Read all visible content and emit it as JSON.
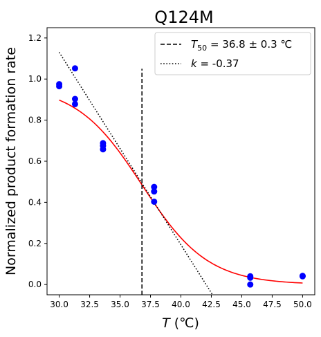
{
  "chart_data": {
    "type": "scatter",
    "title": "Q124M",
    "xlabel_var": "T",
    "xlabel_unit": " (℃)",
    "ylabel": "Normalized product formation rate",
    "xlim": [
      29.0,
      51.0
    ],
    "ylim": [
      -0.05,
      1.25
    ],
    "xticks": [
      30.0,
      32.5,
      35.0,
      37.5,
      40.0,
      42.5,
      45.0,
      47.5,
      50.0
    ],
    "xtick_labels": [
      "30.0",
      "32.5",
      "35.0",
      "37.5",
      "40.0",
      "42.5",
      "45.0",
      "47.5",
      "50.0"
    ],
    "yticks": [
      0.0,
      0.2,
      0.4,
      0.6,
      0.8,
      1.0,
      1.2
    ],
    "ytick_labels": [
      "0.0",
      "0.2",
      "0.4",
      "0.6",
      "0.8",
      "1.0",
      "1.2"
    ],
    "grid": false,
    "legend_position": "top-right",
    "points": {
      "color": "#0000ff",
      "x": [
        30.0,
        30.0,
        31.3,
        31.3,
        31.3,
        33.6,
        33.6,
        33.6,
        37.8,
        37.8,
        37.8,
        45.7,
        45.7,
        45.7,
        50.0,
        50.0
      ],
      "y": [
        0.975,
        0.965,
        1.052,
        0.903,
        0.878,
        0.688,
        0.675,
        0.658,
        0.475,
        0.453,
        0.403,
        0.04,
        0.033,
        0.0,
        0.042,
        0.04
      ]
    },
    "fit_curve": {
      "color": "#ff0000",
      "type": "logistic",
      "top": 0.97,
      "bottom": 0.0,
      "t50": 36.8,
      "slope": 0.37,
      "x_range": [
        30.0,
        50.0
      ]
    },
    "t50_line": {
      "style": "dashed",
      "color": "#000000",
      "x": 36.8,
      "y_range": [
        -0.05,
        1.05
      ],
      "legend_var": "T",
      "legend_sub": "50",
      "legend_value": " = 36.8 ± 0.3 ℃"
    },
    "slope_line": {
      "style": "dotted",
      "color": "#000000",
      "points": [
        [
          30.0,
          1.13
        ],
        [
          42.6,
          -0.05
        ]
      ],
      "legend_var": "k",
      "legend_value": " = -0.37"
    }
  }
}
